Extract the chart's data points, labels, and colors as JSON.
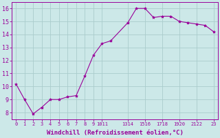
{
  "x": [
    0,
    1,
    2,
    3,
    4,
    5,
    6,
    7,
    8,
    9,
    10,
    11,
    13,
    14,
    15,
    16,
    17,
    18,
    19,
    20,
    21,
    22,
    23
  ],
  "y": [
    10.2,
    9.0,
    7.9,
    8.4,
    9.0,
    9.0,
    9.2,
    9.3,
    10.8,
    12.4,
    13.3,
    13.5,
    14.9,
    16.0,
    16.0,
    15.3,
    15.4,
    15.4,
    15.0,
    14.9,
    14.8,
    14.7,
    14.2
  ],
  "xtick_positions": [
    0,
    1,
    2,
    3,
    4,
    5,
    6,
    7,
    8,
    9,
    10,
    11,
    13,
    14,
    15,
    16,
    17,
    18,
    19,
    20,
    21,
    22,
    23
  ],
  "xtick_labels": [
    "0",
    "1",
    "2",
    "3",
    "4",
    "5",
    "6",
    "7",
    "8",
    "9",
    "1011",
    "",
    "1314",
    "",
    "1516",
    "",
    "1718",
    "",
    "1920",
    "",
    "2122",
    "",
    "23"
  ],
  "yticks": [
    8,
    9,
    10,
    11,
    12,
    13,
    14,
    15,
    16
  ],
  "ylim": [
    7.5,
    16.5
  ],
  "xlim": [
    -0.5,
    23.5
  ],
  "xlabel": "Windchill (Refroidissement éolien,°C)",
  "line_color": "#990099",
  "marker": "*",
  "marker_size": 3,
  "bg_color": "#cce8e8",
  "grid_color": "#aacccc",
  "tick_color": "#990099",
  "xlabel_fontsize": 6.5,
  "ytick_fontsize": 6,
  "xtick_fontsize": 5
}
